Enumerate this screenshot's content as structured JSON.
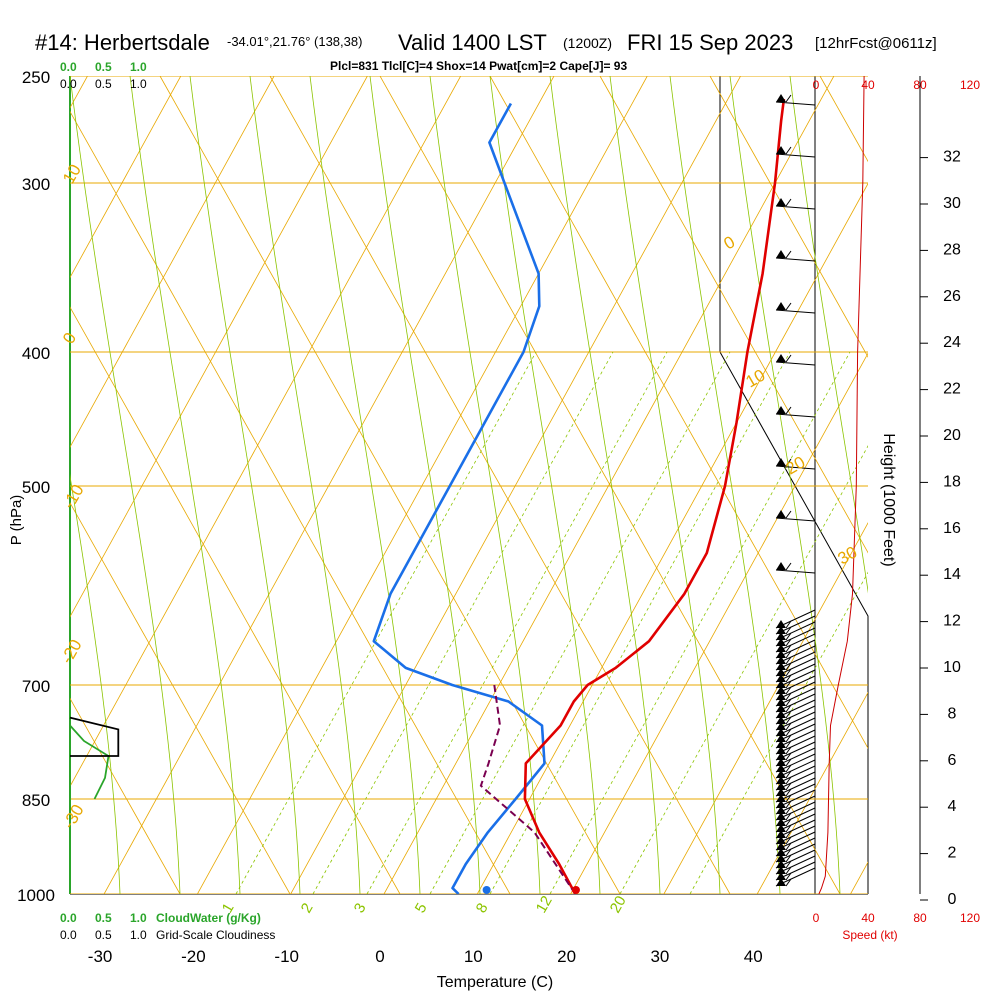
{
  "header": {
    "station": "#14: Herbertsdale",
    "coords": "-34.01°,21.76° (138,38)",
    "valid": "Valid 1400 LST",
    "zulu": "(1200Z)",
    "date": "FRI 15 Sep 2023",
    "fcst": "[12hrFcst@0611z]",
    "indices": "Plcl=831 Tlcl[C]=4 Shox=14 Pwat[cm]=2 Cape[J]= 93"
  },
  "cloud_scale": {
    "water_ticks": [
      "0.0",
      "0.5",
      "1.0"
    ],
    "cover_ticks": [
      "0.0",
      "0.5",
      "1.0"
    ],
    "water_label": "CloudWater (g/Kg)",
    "cover_label": "Grid-Scale Cloudiness"
  },
  "speed_scale": {
    "ticks": [
      "0",
      "40",
      "80",
      "120"
    ],
    "label": "Speed (kt)"
  },
  "colors": {
    "temperature": "#e00000",
    "dewpoint": "#1a6fe8",
    "parcel": "#7a0050",
    "isotherm": "#e8a800",
    "dry_adiabat": "#e8a800",
    "moist_adiabat": "#8cc400",
    "mixing_ratio": "#8cc400",
    "cloud_water": "#2aa52a",
    "speed_profile": "#cc0000",
    "index_text": "#800040"
  },
  "chart_data": {
    "type": "skew-t",
    "xlabel": "Temperature (C)",
    "ylabel": "P (hPa)",
    "height_label": "Height (1000 Feet)",
    "pressure_ticks": [
      250,
      300,
      400,
      500,
      700,
      850,
      1000
    ],
    "temperature_ticks": [
      -30,
      -20,
      -10,
      0,
      10,
      20,
      30,
      40
    ],
    "height_ticks_kft": [
      0,
      2,
      4,
      6,
      8,
      10,
      12,
      14,
      16,
      18,
      20,
      22,
      24,
      26,
      28,
      30,
      32
    ],
    "temperature_profile": [
      [
        1000,
        20.5
      ],
      [
        950,
        17
      ],
      [
        900,
        13
      ],
      [
        850,
        9.5
      ],
      [
        800,
        7.5
      ],
      [
        750,
        9
      ],
      [
        720,
        9
      ],
      [
        700,
        9.5
      ],
      [
        680,
        11.5
      ],
      [
        650,
        13.5
      ],
      [
        600,
        14.5
      ],
      [
        560,
        14.5
      ],
      [
        500,
        12.5
      ],
      [
        450,
        10
      ],
      [
        400,
        7
      ],
      [
        350,
        4
      ],
      [
        300,
        0
      ],
      [
        270,
        -3
      ],
      [
        260,
        -4
      ]
    ],
    "dewpoint_profile": [
      [
        1000,
        8
      ],
      [
        990,
        7
      ],
      [
        950,
        7
      ],
      [
        900,
        7.5
      ],
      [
        850,
        8.5
      ],
      [
        800,
        9.5
      ],
      [
        750,
        7
      ],
      [
        720,
        2
      ],
      [
        700,
        -5
      ],
      [
        680,
        -11
      ],
      [
        650,
        -16
      ],
      [
        600,
        -17
      ],
      [
        550,
        -17
      ],
      [
        500,
        -17
      ],
      [
        450,
        -17
      ],
      [
        400,
        -17
      ],
      [
        370,
        -18
      ],
      [
        350,
        -20
      ],
      [
        300,
        -29
      ],
      [
        280,
        -33
      ],
      [
        262,
        -33
      ]
    ],
    "parcel_profile": [
      [
        1000,
        20.5
      ],
      [
        900,
        12.5
      ],
      [
        831,
        4
      ],
      [
        800,
        3.5
      ],
      [
        750,
        2.5
      ],
      [
        700,
        -0.5
      ]
    ],
    "surface_dewpoint_marker": 11,
    "surface_temperature_marker": 21,
    "dry_adiabat_labels": [
      "10",
      "0",
      "-10",
      "-20",
      "-30",
      "0",
      "10",
      "20",
      "30"
    ],
    "mixing_ratio_labels": [
      "1",
      "2",
      "3",
      "5",
      "8",
      "12",
      "20"
    ],
    "cloud_water": [
      [
        850,
        0.35
      ],
      [
        820,
        0.5
      ],
      [
        790,
        0.55
      ],
      [
        770,
        0.2
      ],
      [
        750,
        0.0
      ]
    ],
    "cloudiness": [
      [
        790,
        0.0
      ],
      [
        790,
        0.75
      ],
      [
        775,
        0.75
      ],
      [
        755,
        0.75
      ],
      [
        740,
        0.0
      ]
    ],
    "wind_speed_profile": [
      [
        1000,
        3
      ],
      [
        990,
        5
      ],
      [
        970,
        8
      ],
      [
        900,
        10
      ],
      [
        800,
        11
      ],
      [
        750,
        12
      ],
      [
        700,
        18
      ],
      [
        650,
        25
      ],
      [
        600,
        29
      ],
      [
        500,
        32
      ],
      [
        400,
        33
      ],
      [
        300,
        37
      ],
      [
        250,
        38
      ]
    ]
  }
}
